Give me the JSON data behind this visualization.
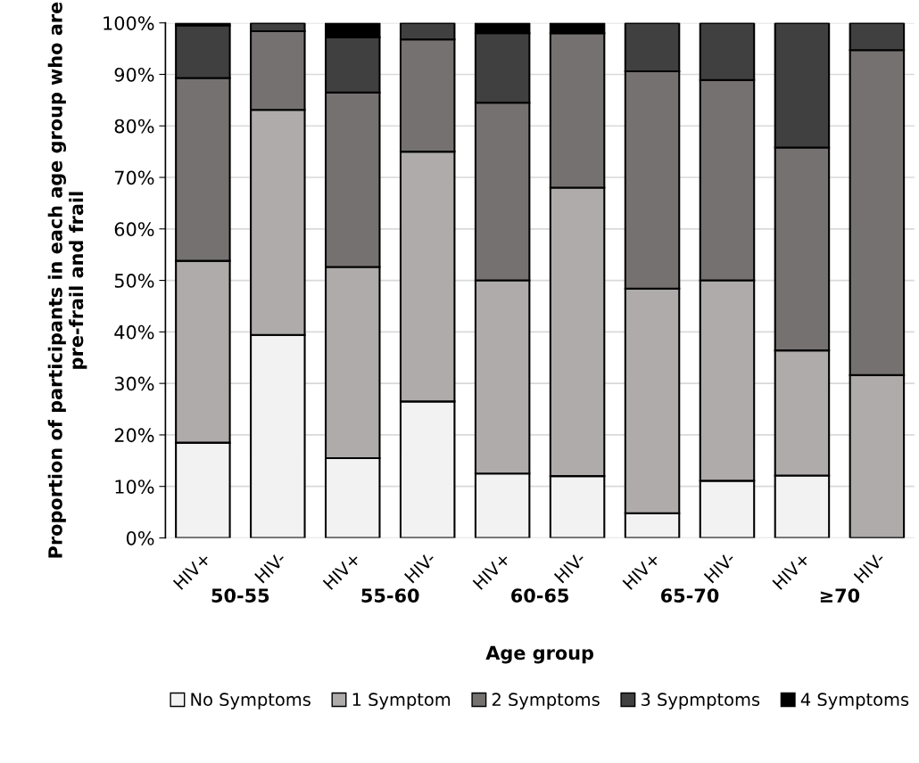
{
  "chart_data": {
    "type": "bar",
    "stacked": true,
    "categories": [
      "HIV+",
      "HIV-",
      "HIV+",
      "HIV-",
      "HIV+",
      "HIV-",
      "HIV+",
      "HIV-",
      "HIV+",
      "HIV-"
    ],
    "xlabel": "Age group",
    "ylabel": "Proportion of participants in each age group who are pre-frail and frail",
    "annotations": [
      "50-55",
      "55-60",
      "60-65",
      "65-70",
      "≥70"
    ],
    "ylim": [
      0,
      1
    ],
    "yticks": [
      {
        "value": 0,
        "label": "0%"
      },
      {
        "value": 0.1,
        "label": "10%"
      },
      {
        "value": 0.2,
        "label": "20%"
      },
      {
        "value": 0.3,
        "label": "30%"
      },
      {
        "value": 0.4,
        "label": "40%"
      },
      {
        "value": 0.5,
        "label": "50%"
      },
      {
        "value": 0.6,
        "label": "60%"
      },
      {
        "value": 0.7,
        "label": "70%"
      },
      {
        "value": 0.8,
        "label": "80%"
      },
      {
        "value": 0.9,
        "label": "90%"
      },
      {
        "value": 1,
        "label": "100%"
      }
    ],
    "grid": "y",
    "legend": "bottom",
    "series": [
      {
        "name": "No Symptoms",
        "color": "#f2f2f2",
        "values": [
          0.185,
          0.394,
          0.155,
          0.265,
          0.125,
          0.12,
          0.048,
          0.111,
          0.121,
          0
        ]
      },
      {
        "name": "1 Symptom",
        "color": "#afabab",
        "values": [
          0.353,
          0.437,
          0.371,
          0.485,
          0.375,
          0.56,
          0.436,
          0.389,
          0.243,
          0.316
        ]
      },
      {
        "name": "2 Symptoms",
        "color": "#767171",
        "values": [
          0.355,
          0.153,
          0.339,
          0.218,
          0.345,
          0.3,
          0.422,
          0.389,
          0.394,
          0.631
        ]
      },
      {
        "name": "3 Sypmptoms",
        "color": "#404040",
        "values": [
          0.102,
          0.016,
          0.107,
          0.032,
          0.135,
          0,
          0.094,
          0.111,
          0.242,
          0.053
        ]
      },
      {
        "name": "4 Symptoms",
        "color": "#000000",
        "values": [
          0.005,
          0,
          0.028,
          0,
          0.02,
          0.02,
          0,
          0,
          0,
          0
        ]
      }
    ]
  }
}
